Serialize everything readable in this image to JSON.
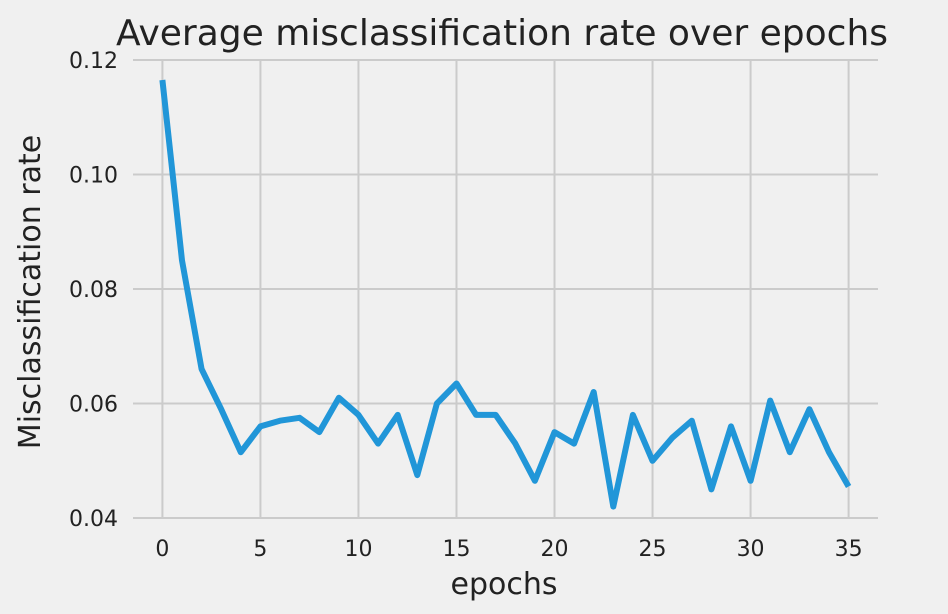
{
  "chart_data": {
    "type": "line",
    "title": "Average misclassification rate over epochs",
    "xlabel": "epochs",
    "ylabel": "Misclassification rate",
    "xlim": [
      -1.5,
      36.5
    ],
    "ylim": [
      0.04,
      0.12
    ],
    "xticks": [
      0,
      5,
      10,
      15,
      20,
      25,
      30,
      35
    ],
    "yticks": [
      0.04,
      0.06,
      0.08,
      0.1,
      0.12
    ],
    "ytick_labels": [
      "0.04",
      "0.06",
      "0.08",
      "0.10",
      "0.12"
    ],
    "grid": true,
    "series": [
      {
        "color": "#2196d8",
        "x": [
          0,
          1,
          2,
          3,
          4,
          5,
          6,
          7,
          8,
          9,
          10,
          11,
          12,
          13,
          14,
          15,
          16,
          17,
          18,
          19,
          20,
          21,
          22,
          23,
          24,
          25,
          26,
          27,
          28,
          29,
          30,
          31,
          32,
          33,
          34,
          35
        ],
        "y": [
          0.1165,
          0.085,
          0.066,
          0.059,
          0.0515,
          0.056,
          0.057,
          0.0575,
          0.055,
          0.061,
          0.058,
          0.053,
          0.058,
          0.0475,
          0.06,
          0.0635,
          0.058,
          0.058,
          0.053,
          0.0465,
          0.055,
          0.053,
          0.062,
          0.042,
          0.058,
          0.05,
          0.054,
          0.057,
          0.045,
          0.056,
          0.0465,
          0.0605,
          0.0515,
          0.059,
          0.0515,
          0.0455
        ]
      }
    ]
  }
}
